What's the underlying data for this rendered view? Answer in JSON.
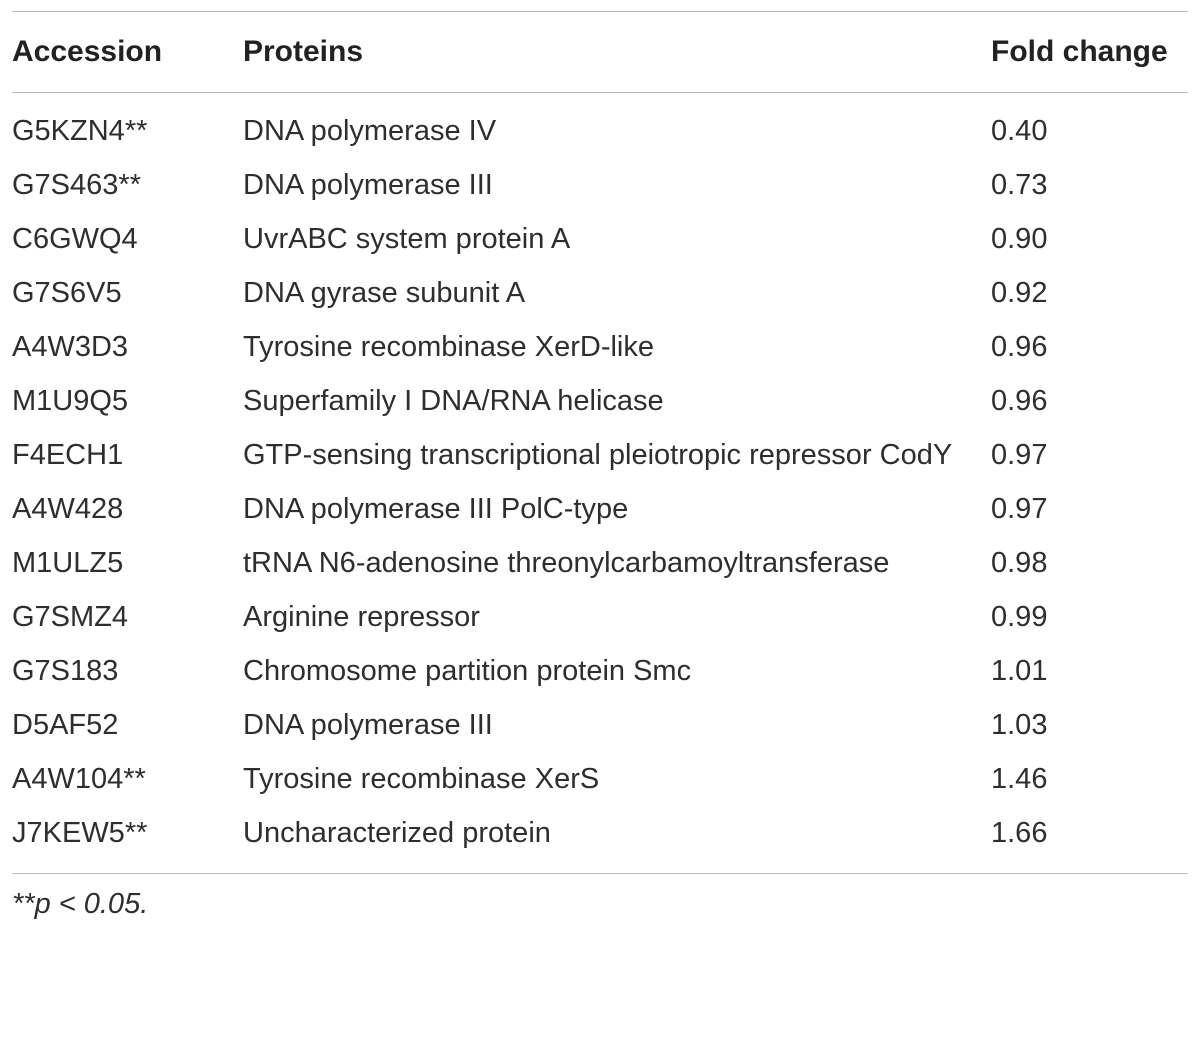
{
  "table": {
    "headers": {
      "accession": "Accession",
      "proteins": "Proteins",
      "fold_change": "Fold change"
    },
    "rows": [
      {
        "accession": "G5KZN4**",
        "protein": "DNA polymerase IV",
        "fold_change": "0.40"
      },
      {
        "accession": "G7S463**",
        "protein": "DNA polymerase III",
        "fold_change": "0.73"
      },
      {
        "accession": "C6GWQ4",
        "protein": "UvrABC system protein A",
        "fold_change": "0.90"
      },
      {
        "accession": "G7S6V5",
        "protein": "DNA gyrase subunit A",
        "fold_change": "0.92"
      },
      {
        "accession": "A4W3D3",
        "protein": "Tyrosine recombinase XerD-like",
        "fold_change": "0.96"
      },
      {
        "accession": "M1U9Q5",
        "protein": "Superfamily I DNA/RNA helicase",
        "fold_change": "0.96"
      },
      {
        "accession": "F4ECH1",
        "protein": "GTP-sensing transcriptional pleiotropic repressor CodY",
        "fold_change": "0.97"
      },
      {
        "accession": "A4W428",
        "protein": "DNA polymerase III PolC-type",
        "fold_change": "0.97"
      },
      {
        "accession": "M1ULZ5",
        "protein": "tRNA N6-adenosine threonylcarbamoyltransferase",
        "fold_change": "0.98"
      },
      {
        "accession": "G7SMZ4",
        "protein": "Arginine repressor",
        "fold_change": "0.99"
      },
      {
        "accession": "G7S183",
        "protein": "Chromosome partition protein Smc",
        "fold_change": "1.01"
      },
      {
        "accession": "D5AF52",
        "protein": "DNA polymerase III",
        "fold_change": "1.03"
      },
      {
        "accession": "A4W104**",
        "protein": "Tyrosine recombinase XerS",
        "fold_change": "1.46"
      },
      {
        "accession": "J7KEW5**",
        "protein": "Uncharacterized protein",
        "fold_change": "1.66"
      }
    ],
    "footnote": "**p < 0.05."
  }
}
